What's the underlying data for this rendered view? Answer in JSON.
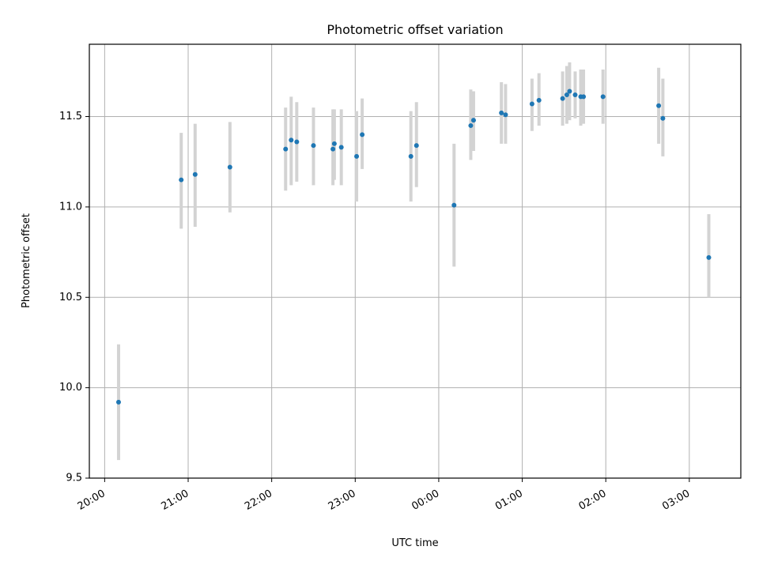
{
  "chart_data": {
    "type": "scatter",
    "title": "Photometric offset variation",
    "xlabel": "UTC time",
    "ylabel": "Photometric offset",
    "grid": true,
    "ylim": [
      9.5,
      11.9
    ],
    "xlim": [
      "19:49",
      "03:37"
    ],
    "xticks": [
      "20:00",
      "21:00",
      "22:00",
      "23:00",
      "00:00",
      "01:00",
      "02:00",
      "03:00"
    ],
    "yticks": [
      "9.5",
      "10.0",
      "10.5",
      "11.0",
      "11.5"
    ],
    "marker_color": "#1f77b4",
    "errorbar_color": "#d3d3d3",
    "series": [
      {
        "points": [
          {
            "x": "20:10",
            "y": 9.92,
            "lo": 9.6,
            "hi": 10.24
          },
          {
            "x": "20:55",
            "y": 11.15,
            "lo": 10.88,
            "hi": 11.41
          },
          {
            "x": "21:05",
            "y": 11.18,
            "lo": 10.89,
            "hi": 11.46
          },
          {
            "x": "21:30",
            "y": 11.22,
            "lo": 10.97,
            "hi": 11.47
          },
          {
            "x": "22:10",
            "y": 11.32,
            "lo": 11.09,
            "hi": 11.55
          },
          {
            "x": "22:14",
            "y": 11.37,
            "lo": 11.12,
            "hi": 11.61
          },
          {
            "x": "22:18",
            "y": 11.36,
            "lo": 11.14,
            "hi": 11.58
          },
          {
            "x": "22:30",
            "y": 11.34,
            "lo": 11.12,
            "hi": 11.55
          },
          {
            "x": "22:44",
            "y": 11.32,
            "lo": 11.12,
            "hi": 11.54
          },
          {
            "x": "22:45",
            "y": 11.35,
            "lo": 11.15,
            "hi": 11.54
          },
          {
            "x": "22:50",
            "y": 11.33,
            "lo": 11.12,
            "hi": 11.54
          },
          {
            "x": "23:01",
            "y": 11.28,
            "lo": 11.03,
            "hi": 11.53
          },
          {
            "x": "23:05",
            "y": 11.4,
            "lo": 11.21,
            "hi": 11.6
          },
          {
            "x": "23:40",
            "y": 11.28,
            "lo": 11.03,
            "hi": 11.53
          },
          {
            "x": "23:44",
            "y": 11.34,
            "lo": 11.11,
            "hi": 11.58
          },
          {
            "x": "00:11",
            "y": 11.01,
            "lo": 10.67,
            "hi": 11.35
          },
          {
            "x": "00:23",
            "y": 11.45,
            "lo": 11.26,
            "hi": 11.65
          },
          {
            "x": "00:25",
            "y": 11.48,
            "lo": 11.31,
            "hi": 11.64
          },
          {
            "x": "00:45",
            "y": 11.52,
            "lo": 11.35,
            "hi": 11.69
          },
          {
            "x": "00:48",
            "y": 11.51,
            "lo": 11.35,
            "hi": 11.68
          },
          {
            "x": "01:07",
            "y": 11.57,
            "lo": 11.42,
            "hi": 11.71
          },
          {
            "x": "01:12",
            "y": 11.59,
            "lo": 11.45,
            "hi": 11.74
          },
          {
            "x": "01:29",
            "y": 11.6,
            "lo": 11.45,
            "hi": 11.75
          },
          {
            "x": "01:32",
            "y": 11.62,
            "lo": 11.46,
            "hi": 11.78
          },
          {
            "x": "01:34",
            "y": 11.64,
            "lo": 11.48,
            "hi": 11.8
          },
          {
            "x": "01:38",
            "y": 11.62,
            "lo": 11.49,
            "hi": 11.75
          },
          {
            "x": "01:42",
            "y": 11.61,
            "lo": 11.45,
            "hi": 11.76
          },
          {
            "x": "01:44",
            "y": 11.61,
            "lo": 11.46,
            "hi": 11.76
          },
          {
            "x": "01:58",
            "y": 11.61,
            "lo": 11.46,
            "hi": 11.76
          },
          {
            "x": "02:38",
            "y": 11.56,
            "lo": 11.35,
            "hi": 11.77
          },
          {
            "x": "02:41",
            "y": 11.49,
            "lo": 11.28,
            "hi": 11.71
          },
          {
            "x": "03:14",
            "y": 10.72,
            "lo": 10.5,
            "hi": 10.96
          }
        ]
      }
    ]
  }
}
